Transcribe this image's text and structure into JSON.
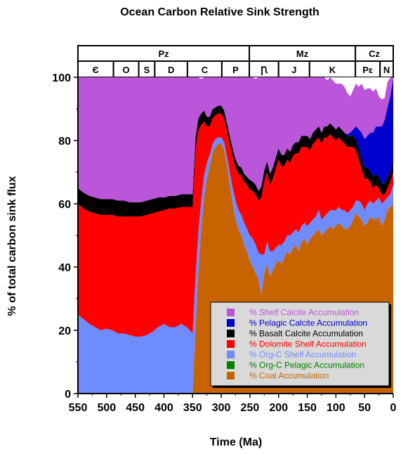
{
  "chart_data": {
    "type": "area",
    "stacked": true,
    "title": "Ocean Carbon Relative Sink Strength",
    "xlabel": "Time (Ma)",
    "ylabel": "% of total carbon sink flux",
    "xlim": [
      550,
      0
    ],
    "ylim": [
      0,
      100
    ],
    "x_ticks": [
      550,
      500,
      450,
      400,
      350,
      300,
      250,
      200,
      150,
      100,
      50,
      0
    ],
    "y_ticks": [
      0,
      20,
      40,
      60,
      80,
      100
    ],
    "legend_position": "bottom-right",
    "eras": [
      {
        "label": "Pz",
        "from": 550,
        "to": 251
      },
      {
        "label": "Mz",
        "from": 251,
        "to": 66
      },
      {
        "label": "Cz",
        "from": 66,
        "to": 0
      }
    ],
    "periods": [
      {
        "label": "Є",
        "from": 550,
        "to": 488
      },
      {
        "label": "O",
        "from": 488,
        "to": 444
      },
      {
        "label": "S",
        "from": 444,
        "to": 416
      },
      {
        "label": "D",
        "from": 416,
        "to": 359
      },
      {
        "label": "C",
        "from": 359,
        "to": 299
      },
      {
        "label": "P",
        "from": 299,
        "to": 251
      },
      {
        "label": "Ꞃ",
        "from": 251,
        "to": 200
      },
      {
        "label": "J",
        "from": 200,
        "to": 146
      },
      {
        "label": "K",
        "from": 146,
        "to": 66
      },
      {
        "label": "Pε",
        "from": 66,
        "to": 23
      },
      {
        "label": "N",
        "from": 23,
        "to": 0
      }
    ],
    "x": [
      550,
      540,
      530,
      520,
      510,
      500,
      490,
      480,
      470,
      460,
      450,
      440,
      430,
      420,
      410,
      400,
      390,
      380,
      370,
      360,
      355,
      350,
      345,
      340,
      335,
      330,
      325,
      320,
      315,
      310,
      305,
      300,
      295,
      290,
      285,
      280,
      275,
      270,
      265,
      260,
      255,
      250,
      245,
      240,
      235,
      230,
      225,
      220,
      215,
      210,
      205,
      200,
      195,
      190,
      185,
      180,
      175,
      170,
      165,
      160,
      155,
      150,
      145,
      140,
      135,
      130,
      125,
      120,
      115,
      110,
      105,
      100,
      95,
      90,
      85,
      80,
      75,
      70,
      65,
      60,
      55,
      50,
      45,
      40,
      35,
      30,
      25,
      20,
      15,
      10,
      5,
      0
    ],
    "series": [
      {
        "name": "% Coal Accumulation",
        "color": "#c86400",
        "values": [
          0,
          0,
          0,
          0,
          0,
          0,
          0,
          0,
          0,
          0,
          0,
          0,
          0,
          0,
          0,
          0,
          0,
          0,
          0,
          0,
          0,
          0,
          20,
          38,
          52,
          62,
          68,
          72,
          76,
          78,
          79,
          79,
          77,
          72,
          66,
          60,
          55,
          52,
          50,
          47,
          45,
          42,
          40,
          38,
          36,
          31,
          38,
          41,
          37,
          39,
          41,
          42,
          41,
          43,
          45,
          44,
          46,
          47,
          45,
          48,
          49,
          47,
          49,
          50,
          51,
          52,
          50,
          51,
          52,
          53,
          52,
          53,
          54,
          53,
          52,
          52,
          53,
          55,
          57,
          56,
          55,
          53,
          54,
          56,
          55,
          55,
          56,
          53,
          55,
          58,
          59,
          60
        ]
      },
      {
        "name": "% Org-C Pelagic Accumulation",
        "color": "#008000",
        "values": [
          0,
          0,
          0,
          0,
          0,
          0,
          0,
          0,
          0,
          0,
          0,
          0,
          0,
          0,
          0,
          0,
          0,
          0,
          0,
          0,
          0,
          0,
          0,
          0,
          0,
          0,
          0,
          0,
          0,
          0,
          0,
          0,
          0,
          0,
          0,
          0,
          0,
          0,
          0,
          0,
          0,
          0,
          0,
          0,
          0,
          0,
          0,
          0,
          0,
          0,
          0,
          0,
          0,
          0,
          0,
          0,
          0,
          0,
          0,
          0,
          0,
          0,
          0,
          0,
          0,
          0,
          0,
          0,
          0,
          0,
          0,
          0,
          0,
          0,
          0,
          0,
          0,
          0,
          0,
          0,
          0,
          0,
          0,
          0,
          0,
          0,
          0,
          0,
          0,
          0,
          0,
          0
        ]
      },
      {
        "name": "% Org-C Shelf Accumulation",
        "color": "#6e8cff",
        "values": [
          25,
          23.5,
          22,
          21,
          20,
          20.5,
          20,
          19,
          19,
          18.5,
          18,
          18,
          18.5,
          19.5,
          21,
          22,
          21,
          21,
          22,
          21,
          20,
          19,
          17,
          13,
          9,
          7,
          5,
          3.5,
          3,
          2.5,
          2,
          2,
          2.5,
          3,
          4,
          5,
          6,
          6,
          6.5,
          7,
          7,
          8,
          9,
          9,
          8.5,
          13,
          6,
          7,
          8,
          6,
          5,
          5,
          6,
          5,
          5,
          6,
          5,
          5,
          6,
          5,
          5,
          6,
          5,
          5,
          5,
          6,
          5,
          5,
          5,
          5,
          6,
          5,
          5,
          5,
          6,
          5,
          5,
          4,
          4,
          5,
          5,
          5,
          6,
          5,
          5,
          6,
          6,
          7,
          6,
          4,
          4,
          6
        ]
      },
      {
        "name": "% Dolomite Shelf Accumulation",
        "color": "#ff0000",
        "values": [
          35,
          35,
          35.5,
          36,
          36.5,
          36,
          36.5,
          37,
          37,
          37.5,
          38,
          38,
          38,
          37.5,
          36.5,
          36,
          37.5,
          37.5,
          37,
          38,
          39,
          40,
          40,
          32,
          24,
          17,
          11.5,
          9,
          8,
          7.5,
          7.5,
          7.5,
          7.5,
          8,
          9,
          10,
          10.5,
          11.5,
          12.5,
          13,
          14,
          14.5,
          15,
          16,
          16.5,
          18,
          23,
          22,
          21,
          23,
          25,
          27,
          25,
          24,
          24,
          23,
          24,
          24,
          25,
          25,
          24,
          25,
          23,
          24,
          24,
          23,
          24,
          25,
          24,
          24,
          23,
          22,
          22,
          22,
          21,
          21,
          20,
          19,
          16,
          13,
          11,
          10,
          8,
          6,
          5,
          5,
          3,
          3,
          2,
          3,
          4,
          4
        ]
      },
      {
        "name": "% Basalt Calcite Accumulation",
        "color": "#000000",
        "values": [
          5,
          5,
          5,
          5,
          5,
          5,
          5,
          5,
          5,
          4.5,
          4.5,
          4.5,
          4.5,
          4.5,
          4.5,
          4,
          4,
          4,
          4,
          4,
          4,
          4,
          4,
          4,
          3.5,
          3.5,
          3,
          3,
          3,
          2.5,
          2.5,
          2.5,
          2.5,
          2.5,
          2.5,
          2.5,
          2.5,
          2.5,
          2.5,
          2.5,
          2.5,
          3,
          3,
          3,
          3,
          3.5,
          3.5,
          3.5,
          3.5,
          3.5,
          3.5,
          3.5,
          3.5,
          3.5,
          3.5,
          3.5,
          3.5,
          3.5,
          3.5,
          3.5,
          3.5,
          3.5,
          3.5,
          3.5,
          3.5,
          3.5,
          3.5,
          3.5,
          3.5,
          3.5,
          3.5,
          3.5,
          3.5,
          3.5,
          3.5,
          3.5,
          3.5,
          3.5,
          3.5,
          3.5,
          3.5,
          3.5,
          3.5,
          3.5,
          3.5,
          3.5,
          3.5,
          3.5,
          3.5,
          3.5,
          3,
          3
        ]
      },
      {
        "name": "% Pelagic Calcite Accumulation",
        "color": "#0000cd",
        "values": [
          0,
          0,
          0,
          0,
          0,
          0,
          0,
          0,
          0,
          0,
          0,
          0,
          0,
          0,
          0,
          0,
          0,
          0,
          0,
          0,
          0,
          0,
          0,
          0,
          0,
          0,
          0,
          0,
          0,
          0,
          0,
          0,
          0,
          0,
          0,
          0,
          0,
          0,
          0,
          0,
          0,
          0,
          0,
          0,
          0,
          0,
          0,
          0,
          0,
          0,
          0,
          0,
          0,
          0,
          0,
          0,
          0,
          0,
          0,
          0,
          0,
          0,
          0,
          0,
          0,
          0,
          0,
          0,
          0,
          0,
          0,
          0,
          0,
          0,
          0,
          0.5,
          1,
          2,
          4,
          6,
          8,
          9,
          10,
          12,
          14,
          15,
          16,
          18,
          20,
          22,
          24,
          27
        ]
      },
      {
        "name": "% Shelf Calcite Accumulation",
        "color": "#bb55d9",
        "values": [
          35,
          36.5,
          37.5,
          38,
          38.5,
          38.5,
          38.5,
          39,
          39,
          39.5,
          39.5,
          39.5,
          39,
          38.5,
          38,
          38,
          37.5,
          37.5,
          37,
          37,
          37,
          37,
          19,
          13,
          11,
          10.5,
          12.5,
          12.5,
          10,
          9.5,
          9,
          9,
          10.5,
          14.5,
          18.5,
          22.5,
          26,
          28,
          28.5,
          30.5,
          31.5,
          32.5,
          33,
          33.5,
          36,
          34.5,
          29.5,
          26.5,
          30.5,
          28.5,
          25.5,
          22.5,
          24.5,
          24.5,
          22.5,
          23.5,
          21.5,
          20.5,
          20.5,
          18.5,
          18.5,
          18.5,
          19.5,
          17.5,
          16.5,
          15.5,
          17.5,
          15.5,
          14.5,
          14.5,
          14.5,
          14.5,
          13.5,
          14.5,
          14.5,
          13,
          11.5,
          12.5,
          13.5,
          13.5,
          15.5,
          15.5,
          15,
          14,
          13,
          12,
          9.5,
          8.5,
          7,
          8,
          6,
          0
        ]
      }
    ]
  }
}
